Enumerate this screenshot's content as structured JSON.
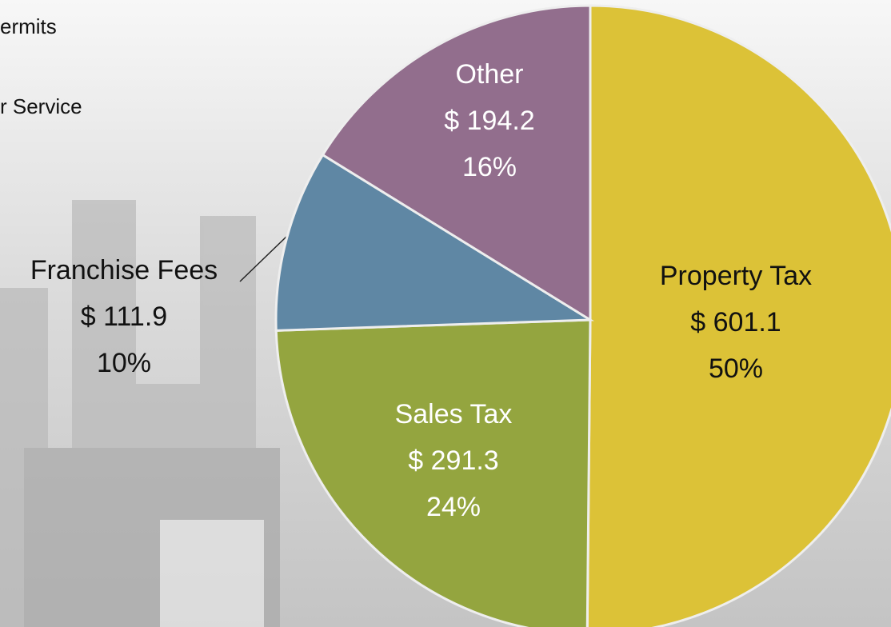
{
  "chart_data": {
    "type": "pie",
    "side_texts": [
      "ermits",
      "r Service"
    ],
    "categories": [
      "Property Tax",
      "Sales Tax",
      "Franchise Fees",
      "Other"
    ],
    "values": [
      601.1,
      291.3,
      111.9,
      194.2
    ],
    "value_labels": [
      "$ 601.1",
      "$ 291.3",
      "$ 111.9",
      "$ 194.2"
    ],
    "percent_labels": [
      "50%",
      "24%",
      "10%",
      "16%"
    ],
    "colors": [
      "#dcc237",
      "#94a53f",
      "#5f87a4",
      "#926e8d"
    ]
  }
}
